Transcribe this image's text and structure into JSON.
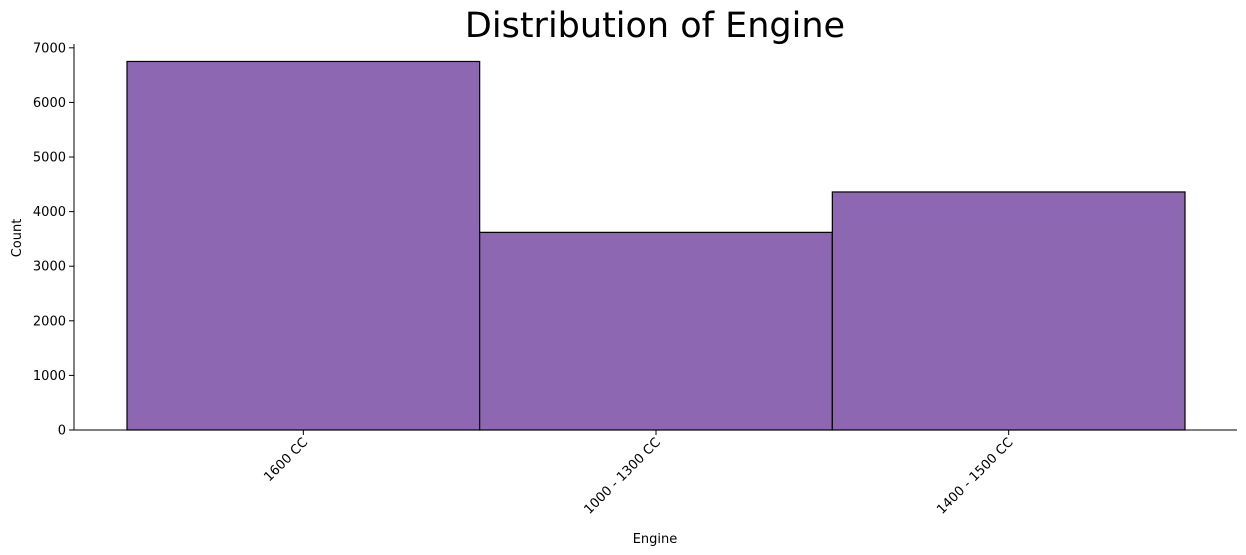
{
  "chart_data": {
    "type": "bar",
    "title": "Distribution of Engine",
    "xlabel": "Engine",
    "ylabel": "Count",
    "categories": [
      "1600 CC",
      "1000 - 1300 CC",
      "1400 - 1500 CC"
    ],
    "values": [
      6750,
      3620,
      4360
    ],
    "ylim": [
      0,
      7070
    ],
    "yticks": [
      0,
      1000,
      2000,
      3000,
      4000,
      5000,
      6000,
      7000
    ],
    "bar_color": "#8e67b2",
    "edge_color": "#000000",
    "grid": false,
    "xtick_rotation_deg": 45
  }
}
